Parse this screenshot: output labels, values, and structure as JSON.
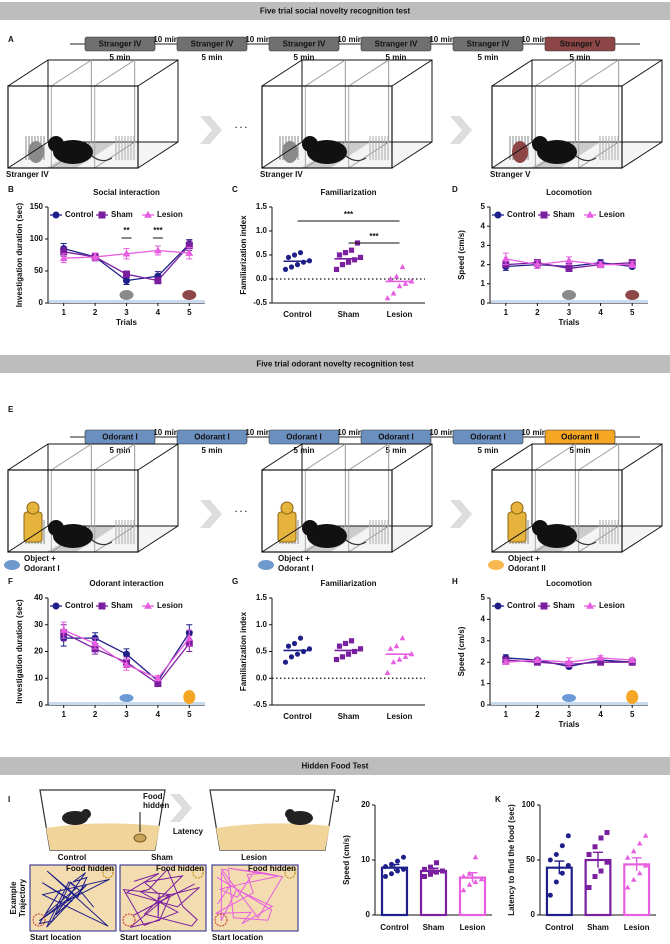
{
  "headers": [
    "Five trial social novelty recognition test",
    "Five trial odorant novelty recognition test",
    "Hidden Food Test"
  ],
  "panel_letters": [
    "A",
    "B",
    "C",
    "D",
    "E",
    "F",
    "G",
    "H",
    "I",
    "J",
    "K"
  ],
  "timeline_A": {
    "blocks": [
      "Stranger IV",
      "Stranger IV",
      "Stranger IV",
      "Stranger IV",
      "Stranger IV",
      "Stranger V"
    ],
    "durations": [
      "5 min",
      "5 min",
      "5 min",
      "5 min",
      "5 min",
      "5 min"
    ],
    "gaps": [
      "10 min",
      "10 min",
      "10 min",
      "10 min",
      "10 min"
    ],
    "colors": [
      "#707070",
      "#707070",
      "#707070",
      "#707070",
      "#707070",
      "#8e4747"
    ]
  },
  "cages_A": {
    "labels": [
      "Stranger IV",
      "Stranger IV",
      "Stranger V"
    ],
    "label_colors": [
      "#8a8a8a",
      "#8a8a8a",
      "#8e4747"
    ],
    "ellipsis": "· · ·"
  },
  "timeline_E": {
    "blocks": [
      "Odorant I",
      "Odorant I",
      "Odorant I",
      "Odorant I",
      "Odorant I",
      "Odorant II"
    ],
    "durations": [
      "5 min",
      "5 min",
      "5 min",
      "5 min",
      "5 min",
      "5 min"
    ],
    "gaps": [
      "10 min",
      "10 min",
      "10 min",
      "10 min",
      "10 min"
    ],
    "colors": [
      "#6b8fbf",
      "#6b8fbf",
      "#6b8fbf",
      "#6b8fbf",
      "#6b8fbf",
      "#f5a623"
    ]
  },
  "cages_E": {
    "objects": [
      "Object +",
      "Object +",
      "Object +"
    ],
    "odorants": [
      "Odorant I",
      "Odorant I",
      "Odorant II"
    ],
    "odorant_colors": [
      "#4a7fc1",
      "#4a7fc1",
      "#f5a623"
    ],
    "ellipsis": "· · ·"
  },
  "panel_I": {
    "food": [
      "Food",
      "hidden"
    ],
    "latency": "Latency",
    "groups": [
      "Control",
      "Sham",
      "Lesion"
    ],
    "group_colors": [
      "#1f1f8a",
      "#7a1fa0",
      "#e75ee0"
    ],
    "trajectory": [
      "Example",
      "Trajectory"
    ],
    "food_hidden": "Food hidden",
    "start": "Start location"
  },
  "chart_data": [
    {
      "type": "line",
      "title": "Social interaction",
      "y_label": "Investigation duration (sec)",
      "x_label": "Trials",
      "x": [
        1,
        2,
        3,
        4,
        5
      ],
      "xlim": [
        0.5,
        5.5
      ],
      "xticks": [
        1,
        2,
        3,
        4,
        5
      ],
      "ylim": [
        0,
        150
      ],
      "yticks": [
        0,
        50,
        100,
        150
      ],
      "legend": "top",
      "series": [
        {
          "name": "Control",
          "color": "#1f1f8a",
          "marker": "circle",
          "values": [
            85,
            72,
            35,
            42,
            92
          ],
          "errors": [
            8,
            6,
            6,
            7,
            7
          ]
        },
        {
          "name": "Sham",
          "color": "#7a1fa0",
          "marker": "square",
          "values": [
            80,
            72,
            45,
            35,
            90
          ],
          "errors": [
            7,
            6,
            5,
            5,
            8
          ]
        },
        {
          "name": "Lesion",
          "color": "#e75ee0",
          "marker": "triangle",
          "values": [
            70,
            72,
            77,
            82,
            78
          ],
          "errors": [
            7,
            6,
            8,
            7,
            9
          ]
        }
      ],
      "annotations": [
        {
          "x": 3,
          "label": "**"
        },
        {
          "x": 4,
          "label": "***"
        }
      ]
    },
    {
      "type": "dot",
      "title": "Familiarization",
      "y_label": "Familiarization index",
      "categories": [
        "Control",
        "Sham",
        "Lesion"
      ],
      "colors": [
        "#1f1f8a",
        "#7a1fa0",
        "#e75ee0"
      ],
      "markers": [
        "circle",
        "square",
        "triangle"
      ],
      "ylim": [
        -0.5,
        1.5
      ],
      "yticks": [
        -0.5,
        {
          "value": 0,
          "label": "0.0"
        },
        0.5,
        {
          "value": 1,
          "label": "1.0"
        },
        1.5
      ],
      "reference_line": 0,
      "points": [
        [
          0.2,
          0.25,
          0.3,
          0.35,
          0.38,
          0.45,
          0.5,
          0.55
        ],
        [
          0.2,
          0.3,
          0.35,
          0.4,
          0.45,
          0.5,
          0.55,
          0.6,
          0.75
        ],
        [
          -0.4,
          -0.3,
          -0.15,
          -0.1,
          -0.05,
          0.0,
          0.05,
          0.25
        ]
      ],
      "means": [
        0.37,
        0.42,
        -0.05
      ],
      "comparisons": [
        {
          "from": "Control",
          "to": "Lesion",
          "label": "***"
        },
        {
          "from": "Sham",
          "to": "Lesion",
          "label": "***"
        }
      ]
    },
    {
      "type": "line",
      "title": "Locomotion",
      "y_label": "Speed (cm/s)",
      "x_label": "Trials",
      "x": [
        1,
        2,
        3,
        4,
        5
      ],
      "xlim": [
        0.5,
        5.5
      ],
      "xticks": [
        1,
        2,
        3,
        4,
        5
      ],
      "ylim": [
        0,
        5
      ],
      "yticks": [
        0,
        1,
        2,
        3,
        4,
        5
      ],
      "legend": "top",
      "series": [
        {
          "name": "Control",
          "color": "#1f1f8a",
          "marker": "circle",
          "values": [
            1.9,
            2.0,
            1.9,
            2.1,
            1.9
          ],
          "errors": [
            0.2,
            0.2,
            0.15,
            0.15,
            0.1
          ]
        },
        {
          "name": "Sham",
          "color": "#7a1fa0",
          "marker": "square",
          "values": [
            2.0,
            2.1,
            1.8,
            2.0,
            2.1
          ],
          "errors": [
            0.15,
            0.15,
            0.15,
            0.15,
            0.15
          ]
        },
        {
          "name": "Lesion",
          "color": "#e75ee0",
          "marker": "triangle",
          "values": [
            2.3,
            2.0,
            2.2,
            2.0,
            2.0
          ],
          "errors": [
            0.3,
            0.2,
            0.2,
            0.15,
            0.15
          ]
        }
      ]
    },
    {
      "type": "line",
      "title": "Odorant interaction",
      "y_label": "Investigation duration (sec)",
      "x": [
        1,
        2,
        3,
        4,
        5
      ],
      "xlim": [
        0.5,
        5.5
      ],
      "xticks": [
        1,
        2,
        3,
        4,
        5
      ],
      "ylim": [
        0,
        40
      ],
      "yticks": [
        0,
        10,
        20,
        30,
        40
      ],
      "legend": "top",
      "series": [
        {
          "name": "Control",
          "color": "#1f1f8a",
          "marker": "circle",
          "values": [
            25,
            25,
            19,
            9,
            27
          ],
          "errors": [
            3,
            2,
            2,
            1,
            3
          ]
        },
        {
          "name": "Sham",
          "color": "#7a1fa0",
          "marker": "square",
          "values": [
            27,
            21,
            16,
            8,
            23
          ],
          "errors": [
            3,
            2,
            2,
            1,
            3
          ]
        },
        {
          "name": "Lesion",
          "color": "#e75ee0",
          "marker": "triangle",
          "values": [
            28,
            23,
            15,
            10,
            25
          ],
          "errors": [
            3,
            2,
            2,
            1,
            3
          ]
        }
      ]
    },
    {
      "type": "dot",
      "title": "Familiarization",
      "y_label": "Familiarization index",
      "categories": [
        "Control",
        "Sham",
        "Lesion"
      ],
      "colors": [
        "#1f1f8a",
        "#7a1fa0",
        "#e75ee0"
      ],
      "markers": [
        "circle",
        "square",
        "triangle"
      ],
      "ylim": [
        -0.5,
        1.5
      ],
      "yticks": [
        -0.5,
        {
          "value": 0,
          "label": "0.0"
        },
        0.5,
        {
          "value": 1,
          "label": "1.0"
        },
        1.5
      ],
      "reference_line": 0,
      "points": [
        [
          0.3,
          0.4,
          0.45,
          0.5,
          0.55,
          0.6,
          0.65,
          0.75
        ],
        [
          0.35,
          0.4,
          0.45,
          0.5,
          0.55,
          0.6,
          0.65,
          0.7
        ],
        [
          0.1,
          0.3,
          0.35,
          0.4,
          0.45,
          0.55,
          0.6,
          0.75
        ]
      ],
      "means": [
        0.52,
        0.52,
        0.45
      ]
    },
    {
      "type": "line",
      "title": "Locomotion",
      "y_label": "Speed (cm/s)",
      "x_label": "Trials",
      "x": [
        1,
        2,
        3,
        4,
        5
      ],
      "xlim": [
        0.5,
        5.5
      ],
      "xticks": [
        1,
        2,
        3,
        4,
        5
      ],
      "ylim": [
        0,
        5
      ],
      "yticks": [
        0,
        1,
        2,
        3,
        4,
        5
      ],
      "legend": "top",
      "series": [
        {
          "name": "Control",
          "color": "#1f1f8a",
          "marker": "circle",
          "values": [
            2.2,
            2.1,
            1.8,
            2.1,
            2.0
          ],
          "errors": [
            0.15,
            0.1,
            0.1,
            0.1,
            0.1
          ]
        },
        {
          "name": "Sham",
          "color": "#7a1fa0",
          "marker": "square",
          "values": [
            2.1,
            2.0,
            1.9,
            2.0,
            2.0
          ],
          "errors": [
            0.1,
            0.1,
            0.1,
            0.1,
            0.1
          ]
        },
        {
          "name": "Lesion",
          "color": "#e75ee0",
          "marker": "triangle",
          "values": [
            2.0,
            2.1,
            2.0,
            2.2,
            2.1
          ],
          "errors": [
            0.1,
            0.1,
            0.2,
            0.1,
            0.1
          ]
        }
      ]
    },
    {
      "type": "bar",
      "y_label": "Speed (cm/s)",
      "categories": [
        "Control",
        "Sham",
        "Lesion"
      ],
      "colors": [
        "#1f1f8a",
        "#7a1fa0",
        "#e75ee0"
      ],
      "markers": [
        "circle",
        "square",
        "triangle"
      ],
      "ylim": [
        0,
        20
      ],
      "yticks": [
        0,
        10,
        20
      ],
      "values": [
        8.6,
        8.0,
        6.8
      ],
      "errors": [
        0.6,
        0.5,
        0.9
      ],
      "points": [
        [
          7,
          7.5,
          8,
          8.3,
          8.8,
          9.2,
          9.8,
          10.5
        ],
        [
          7,
          7.4,
          7.8,
          8,
          8.3,
          8.7,
          9.5
        ],
        [
          4.5,
          5.5,
          6,
          6.5,
          7,
          7.5,
          10.5
        ]
      ]
    },
    {
      "type": "bar",
      "y_label": "Latency to find the food (sec)",
      "categories": [
        "Control",
        "Sham",
        "Lesion"
      ],
      "colors": [
        "#1f1f8a",
        "#7a1fa0",
        "#e75ee0"
      ],
      "markers": [
        "circle",
        "square",
        "triangle"
      ],
      "ylim": [
        0,
        100
      ],
      "yticks": [
        0,
        50,
        100
      ],
      "values": [
        43,
        50,
        46
      ],
      "errors": [
        6,
        7,
        6
      ],
      "points": [
        [
          18,
          30,
          38,
          45,
          50,
          55,
          63,
          72
        ],
        [
          25,
          35,
          40,
          48,
          55,
          62,
          70,
          75
        ],
        [
          25,
          32,
          38,
          45,
          52,
          58,
          65,
          72
        ]
      ]
    }
  ]
}
